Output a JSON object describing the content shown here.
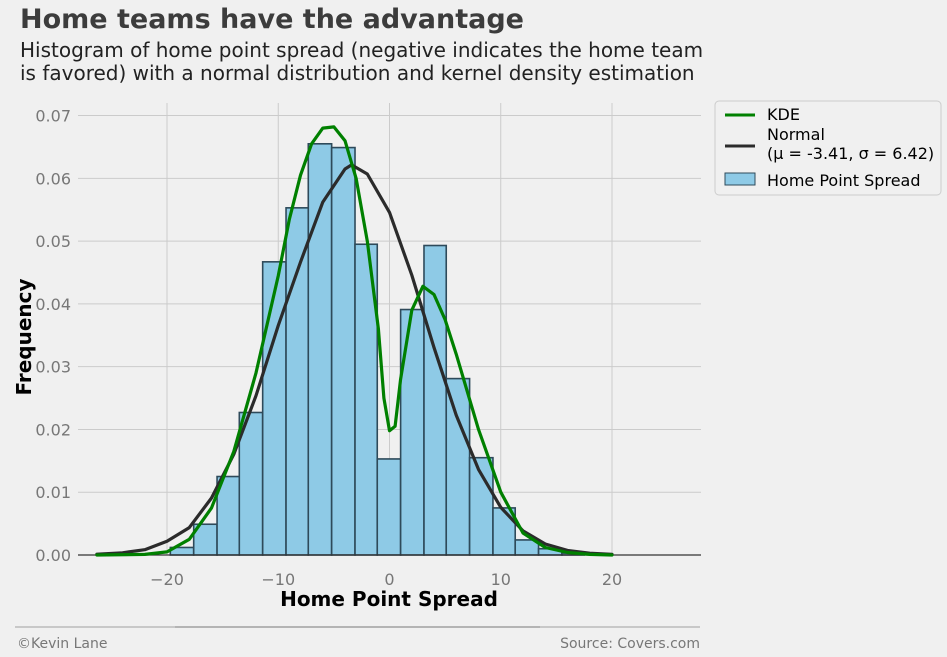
{
  "title": "Home teams have the advantage",
  "subtitle_lines": [
    "Histogram of home point spread (negative indicates the home team",
    "is favored) with a normal distribution and kernel density estimation"
  ],
  "footer": {
    "left": "©Kevin Lane",
    "right": "Source: Covers.com"
  },
  "legend": {
    "placement": "outside-top-right",
    "kde_label": "KDE",
    "normal_label_line1": "Normal",
    "normal_label_line2": "(μ = -3.41, σ = 6.42)",
    "hist_label": "Home Point Spread"
  },
  "colors": {
    "background": "#f0f0f0",
    "kde": "#008000",
    "normal": "#2b2b2b",
    "hist_fill": "#8ecae6",
    "hist_edge": "#2e4a5a",
    "grid": "#cbcbcb"
  },
  "chart_data": {
    "type": "bar",
    "xlabel": "Home Point Spread",
    "ylabel": "Frequency",
    "xlim": [
      -28,
      28
    ],
    "ylim": [
      0,
      0.072
    ],
    "xticks": [
      -20,
      -10,
      0,
      10,
      20
    ],
    "xtick_labels": [
      "−20",
      "−10",
      "0",
      "10",
      "20"
    ],
    "yticks": [
      0,
      0.01,
      0.02,
      0.03,
      0.04,
      0.05,
      0.06,
      0.07
    ],
    "ytick_labels": [
      "0.00",
      "0.01",
      "0.02",
      "0.03",
      "0.04",
      "0.05",
      "0.06",
      "0.07"
    ],
    "grid": true,
    "histogram": {
      "name": "Home Point Spread",
      "bin_edges": [
        -19.7,
        -17.6,
        -15.5,
        -13.5,
        -11.4,
        -9.3,
        -7.3,
        -5.2,
        -3.1,
        -1.1,
        1.0,
        3.1,
        5.1,
        7.2,
        9.3,
        11.3,
        13.4,
        15.5,
        17.5
      ],
      "values": [
        0.0012,
        0.0049,
        0.0125,
        0.0227,
        0.0467,
        0.0553,
        0.0655,
        0.0649,
        0.0495,
        0.0153,
        0.0391,
        0.0493,
        0.0281,
        0.0155,
        0.0075,
        0.0024,
        0.001,
        0.0003
      ]
    },
    "series": [
      {
        "name": "Normal",
        "mu": -3.41,
        "sigma": 6.42,
        "x": [
          -26.3,
          -24,
          -22,
          -20,
          -18,
          -16,
          -14,
          -12,
          -10,
          -8,
          -6,
          -4,
          -3.41,
          -2,
          0,
          2,
          4,
          6,
          8,
          10,
          12,
          14,
          16,
          18,
          20
        ],
        "y": [
          0.00012,
          0.00035,
          0.00085,
          0.00218,
          0.00437,
          0.00908,
          0.01604,
          0.02538,
          0.03657,
          0.04665,
          0.05622,
          0.06148,
          0.06214,
          0.06069,
          0.05458,
          0.04458,
          0.03306,
          0.02228,
          0.01363,
          0.00758,
          0.00384,
          0.00176,
          0.00073,
          0.00028,
          0.0001
        ]
      },
      {
        "name": "KDE",
        "x": [
          -26.3,
          -22,
          -20,
          -18,
          -16,
          -14,
          -12,
          -10,
          -9,
          -8,
          -7,
          -6,
          -5,
          -4,
          -3,
          -2,
          -1,
          -0.5,
          0,
          0.5,
          1,
          2,
          3,
          4,
          5,
          6,
          8,
          10,
          12,
          14,
          16,
          18,
          20
        ],
        "y": [
          0.0,
          0.0001,
          0.0005,
          0.0025,
          0.0075,
          0.0165,
          0.029,
          0.0445,
          0.0535,
          0.0605,
          0.0655,
          0.068,
          0.0682,
          0.066,
          0.06,
          0.05,
          0.036,
          0.025,
          0.0198,
          0.0205,
          0.028,
          0.039,
          0.0428,
          0.0415,
          0.0375,
          0.032,
          0.02,
          0.01,
          0.0035,
          0.0012,
          0.0004,
          0.0001,
          0.0
        ]
      }
    ]
  }
}
